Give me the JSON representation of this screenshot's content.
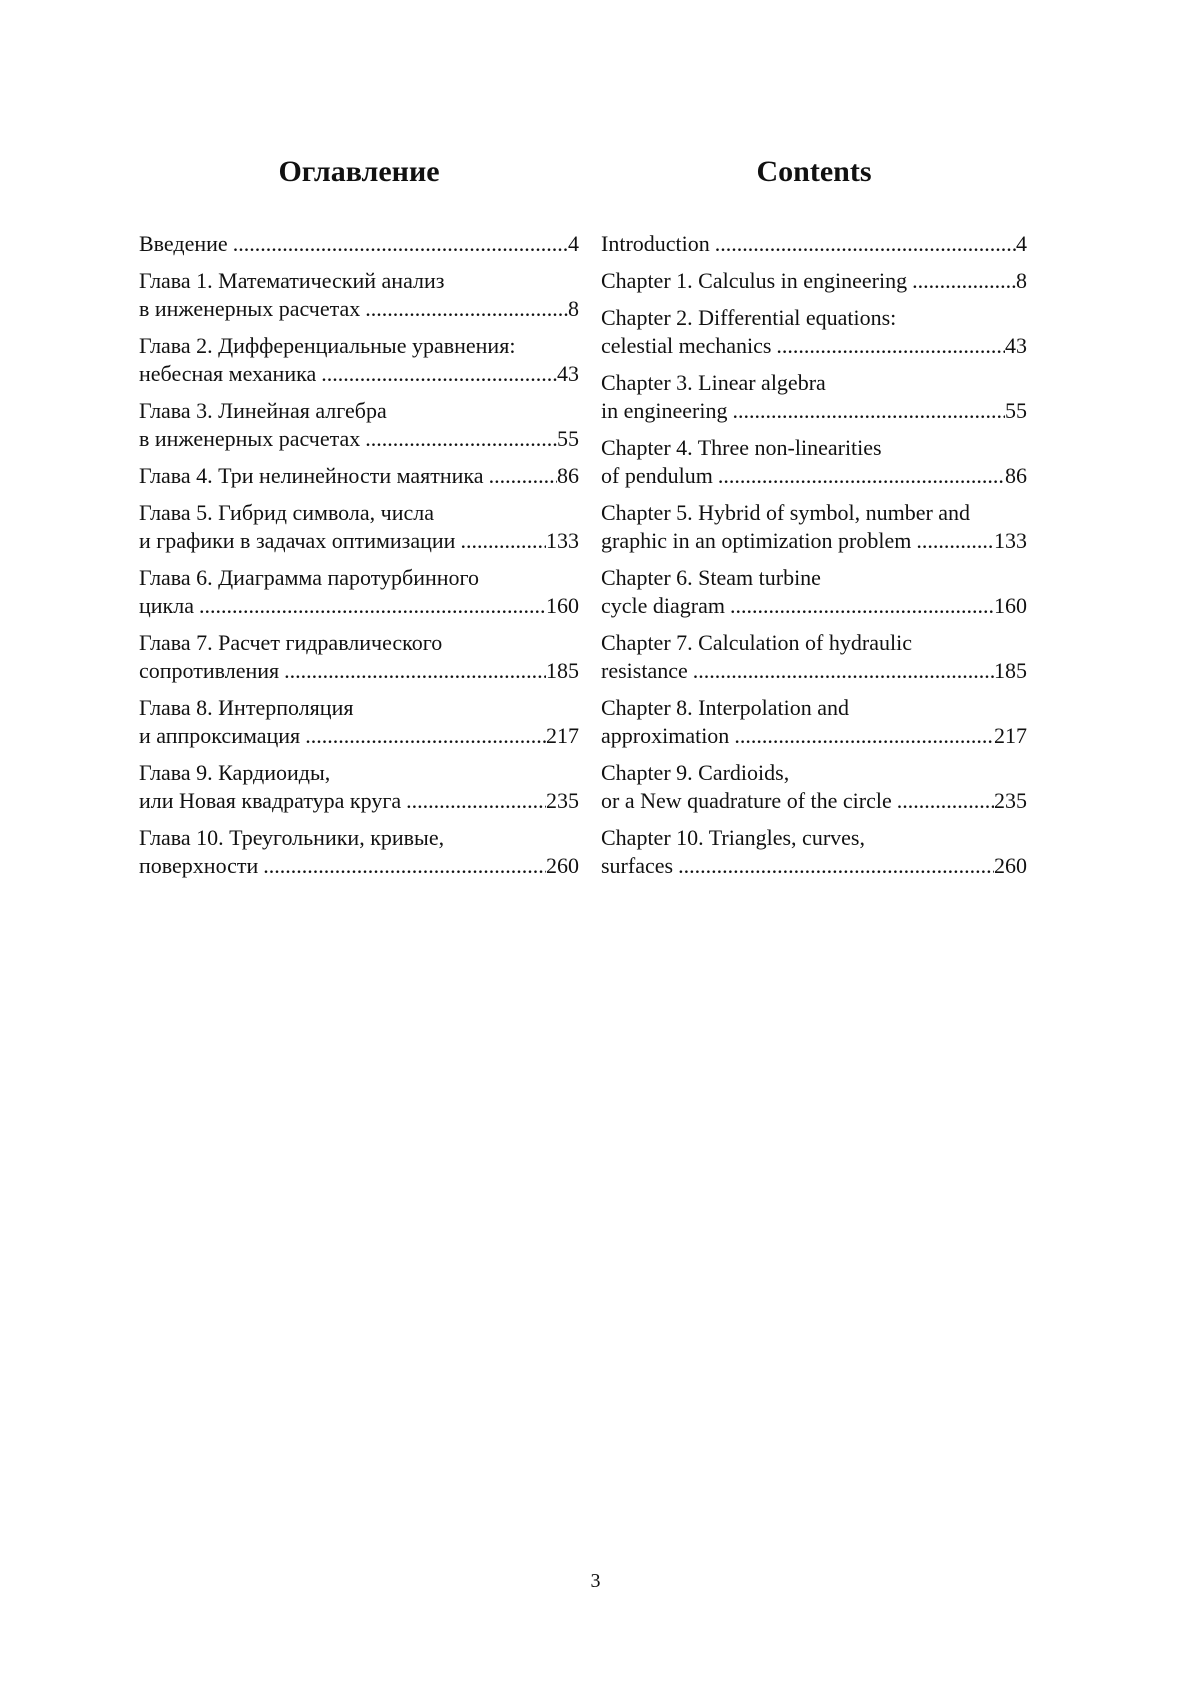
{
  "left": {
    "title": "Оглавление",
    "entries": [
      {
        "lines": [
          "Введение"
        ],
        "page": "4"
      },
      {
        "lines": [
          "Глава 1. Математический анализ",
          "в инженерных расчетах"
        ],
        "page": "8"
      },
      {
        "lines": [
          "Глава 2. Дифференциальные уравнения:",
          "небесная механика"
        ],
        "page": "43"
      },
      {
        "lines": [
          "Глава 3. Линейная алгебра",
          "в инженерных расчетах"
        ],
        "page": "55"
      },
      {
        "lines": [
          "Глава 4. Три нелинейности маятника"
        ],
        "page": "86"
      },
      {
        "lines": [
          "Глава 5. Гибрид символа, числа",
          "и графики в задачах оптимизации"
        ],
        "page": "133"
      },
      {
        "lines": [
          "Глава 6. Диаграмма паротурбинного",
          "цикла"
        ],
        "page": "160"
      },
      {
        "lines": [
          "Глава 7. Расчет гидравлического",
          "сопротивления"
        ],
        "page": "185"
      },
      {
        "lines": [
          "Глава 8. Интерполяция",
          "и аппроксимация"
        ],
        "page": "217"
      },
      {
        "lines": [
          "Глава 9. Кардиоиды,",
          "или Новая квадратура круга"
        ],
        "page": "235"
      },
      {
        "lines": [
          "Глава 10. Треугольники, кривые,",
          "поверхности"
        ],
        "page": "260"
      }
    ]
  },
  "right": {
    "title": "Contents",
    "entries": [
      {
        "lines": [
          "Introduction"
        ],
        "page": "4"
      },
      {
        "lines": [
          "Chapter 1. Calculus in engineering"
        ],
        "page": "8"
      },
      {
        "lines": [
          "Chapter 2. Differential equations:",
          "celestial mechanics"
        ],
        "page": "43"
      },
      {
        "lines": [
          "Chapter 3. Linear algebra",
          "in engineering"
        ],
        "page": "55"
      },
      {
        "lines": [
          "Chapter 4. Three non-linearities",
          "of pendulum"
        ],
        "page": "86"
      },
      {
        "lines": [
          "Chapter 5. Hybrid of symbol, number and",
          "graphic in an optimization problem"
        ],
        "page": "133"
      },
      {
        "lines": [
          "Chapter 6. Steam turbine",
          "cycle diagram"
        ],
        "page": "160"
      },
      {
        "lines": [
          "Chapter 7. Calculation of hydraulic",
          "resistance"
        ],
        "page": "185"
      },
      {
        "lines": [
          "Chapter 8. Interpolation and",
          "approximation"
        ],
        "page": "217"
      },
      {
        "lines": [
          "Chapter 9. Cardioids,",
          "or a New quadrature of the circle"
        ],
        "page": "235"
      },
      {
        "lines": [
          "Chapter 10. Triangles, curves,",
          "surfaces"
        ],
        "page": "260"
      }
    ]
  },
  "page_number": "3"
}
